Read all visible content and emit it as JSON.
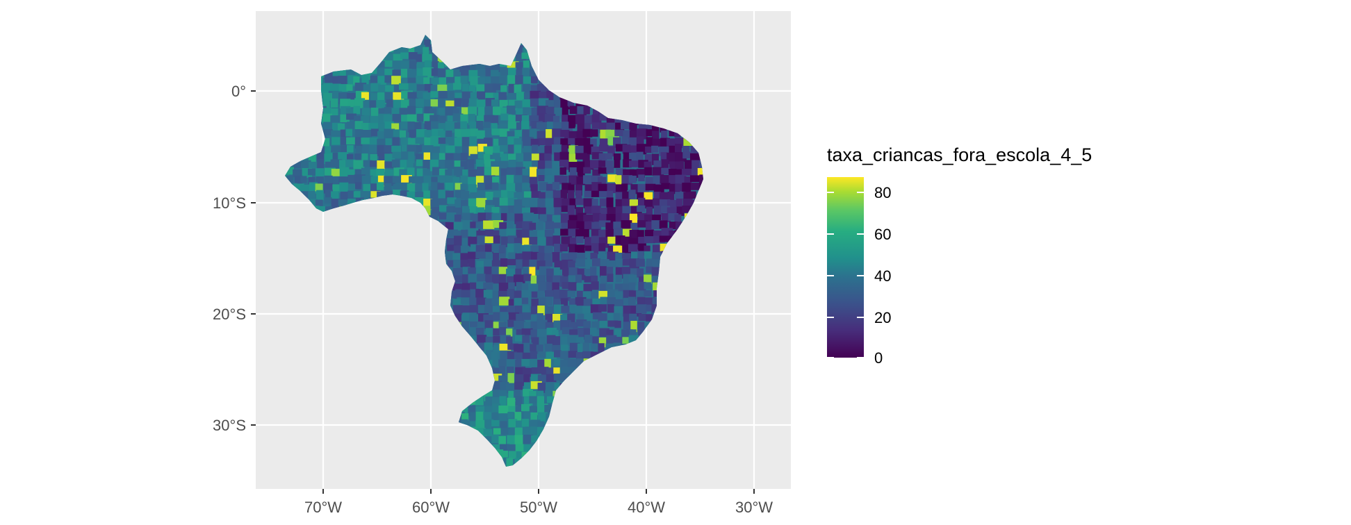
{
  "map": {
    "type": "choropleth",
    "region": "Brazil municipalities",
    "background_color": "#ebebeb",
    "grid_color": "#ffffff",
    "x_ticks": [
      "70°W",
      "60°W",
      "50°W",
      "40°W",
      "30°W"
    ],
    "y_ticks": [
      "0°",
      "10°S",
      "20°S",
      "30°S"
    ],
    "legend": {
      "title": "taxa_criancas_fora_escola_4_5",
      "labels": [
        "80",
        "60",
        "40",
        "20",
        "0"
      ],
      "colormap": "viridis",
      "placement": "right",
      "range": [
        0,
        85
      ]
    },
    "colors": {
      "low": "#440154",
      "mid_low": "#3b528b",
      "mid": "#21908c",
      "mid_high": "#5dc863",
      "high": "#fde725"
    }
  }
}
